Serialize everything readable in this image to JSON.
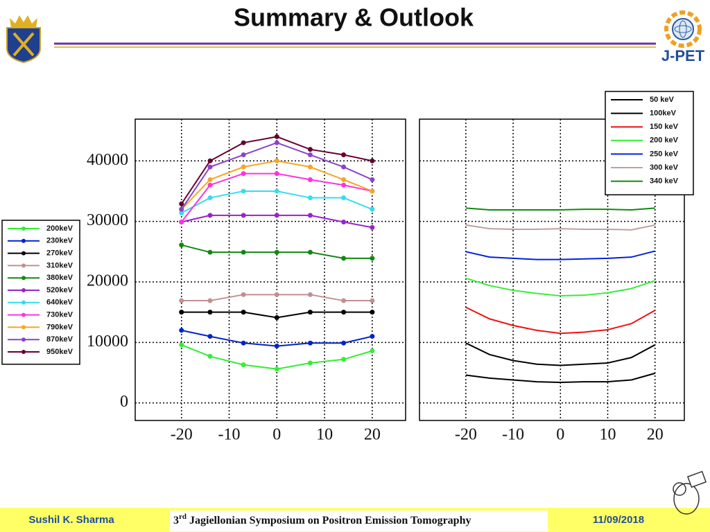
{
  "header": {
    "title": "Summary & Outlook",
    "logo_text": "J-PET"
  },
  "footer": {
    "author": "Sushil K. Sharma",
    "event_number": "3",
    "event_suffix": "rd",
    "event_name": "Jagiellonian Symposium on Positron Emission Tomography",
    "date": "11/09/2018"
  },
  "chart_data": [
    {
      "type": "line",
      "markers": true,
      "grid": true,
      "legend": "left",
      "x": [
        -20,
        -14,
        -7,
        0,
        7,
        14,
        20
      ],
      "xlim": [
        -29.7,
        27
      ],
      "ylim": [
        -2900,
        46900
      ],
      "xticks": [
        -20,
        -10,
        0,
        10,
        20
      ],
      "yticks": [
        0,
        10000,
        20000,
        30000,
        40000
      ],
      "ytick_labels": true,
      "series": [
        {
          "name": "200keV",
          "color": "#33ee33",
          "values": [
            9600,
            7700,
            6300,
            5600,
            6600,
            7200,
            8600
          ]
        },
        {
          "name": "230keV",
          "color": "#0022cc",
          "values": [
            12000,
            11000,
            9900,
            9400,
            9900,
            9900,
            11000
          ]
        },
        {
          "name": "270keV",
          "color": "#000000",
          "values": [
            15000,
            15000,
            15000,
            14100,
            15000,
            15000,
            15000
          ]
        },
        {
          "name": "310keV",
          "color": "#c09090",
          "values": [
            16900,
            16900,
            17900,
            17900,
            17900,
            16900,
            16900
          ]
        },
        {
          "name": "380keV",
          "color": "#118811",
          "values": [
            26100,
            24900,
            24900,
            24900,
            24900,
            23900,
            23900
          ]
        },
        {
          "name": "520keV",
          "color": "#9922cc",
          "values": [
            29900,
            31000,
            31000,
            31000,
            31000,
            29900,
            29000
          ]
        },
        {
          "name": "640keV",
          "color": "#33ddee",
          "values": [
            31400,
            33900,
            35000,
            35000,
            33900,
            33900,
            32000
          ]
        },
        {
          "name": "730keV",
          "color": "#ff33dd",
          "values": [
            29900,
            36000,
            37900,
            37900,
            36900,
            36000,
            35000
          ]
        },
        {
          "name": "790keV",
          "color": "#f5a623",
          "values": [
            32000,
            36900,
            39000,
            40000,
            39000,
            36900,
            35000
          ]
        },
        {
          "name": "870keV",
          "color": "#8844cc",
          "values": [
            32000,
            39000,
            41000,
            43000,
            41000,
            39000,
            36900
          ]
        },
        {
          "name": "950keV",
          "color": "#660033",
          "values": [
            32900,
            40000,
            43000,
            44000,
            41900,
            41000,
            40000
          ]
        }
      ]
    },
    {
      "type": "line",
      "markers": false,
      "grid": true,
      "legend": "upper right",
      "x": [
        -20,
        -15,
        -10,
        -5,
        0,
        5,
        10,
        15,
        20
      ],
      "xlim": [
        -29.8,
        26.2
      ],
      "ylim": [
        -2900,
        46900
      ],
      "xticks": [
        -20,
        -10,
        0,
        10,
        20
      ],
      "yticks": [
        0,
        10000,
        20000,
        30000,
        40000
      ],
      "ytick_labels": false,
      "series": [
        {
          "name": "50 keV",
          "color": "#000000",
          "values": [
            4600,
            4100,
            3800,
            3500,
            3400,
            3500,
            3500,
            3800,
            4900
          ]
        },
        {
          "name": "100keV",
          "color": "#000000",
          "values": [
            9900,
            8000,
            7000,
            6400,
            6200,
            6400,
            6600,
            7500,
            9600
          ]
        },
        {
          "name": "150 keV",
          "color": "#ee1111",
          "values": [
            15800,
            13900,
            12800,
            12000,
            11500,
            11700,
            12100,
            13100,
            15300
          ]
        },
        {
          "name": "200 keV",
          "color": "#33ee33",
          "values": [
            20600,
            19400,
            18600,
            18100,
            17700,
            17800,
            18200,
            18900,
            20200
          ]
        },
        {
          "name": "250 keV",
          "color": "#0022dd",
          "values": [
            25000,
            24100,
            23900,
            23700,
            23700,
            23800,
            23900,
            24100,
            25100
          ]
        },
        {
          "name": "300 keV",
          "color": "#c0a0a0",
          "values": [
            29400,
            28800,
            28700,
            28700,
            28800,
            28700,
            28700,
            28600,
            29400
          ]
        },
        {
          "name": "340 keV",
          "color": "#118811",
          "values": [
            32200,
            31900,
            31900,
            31900,
            31900,
            32000,
            32000,
            31900,
            32200
          ]
        }
      ]
    }
  ]
}
